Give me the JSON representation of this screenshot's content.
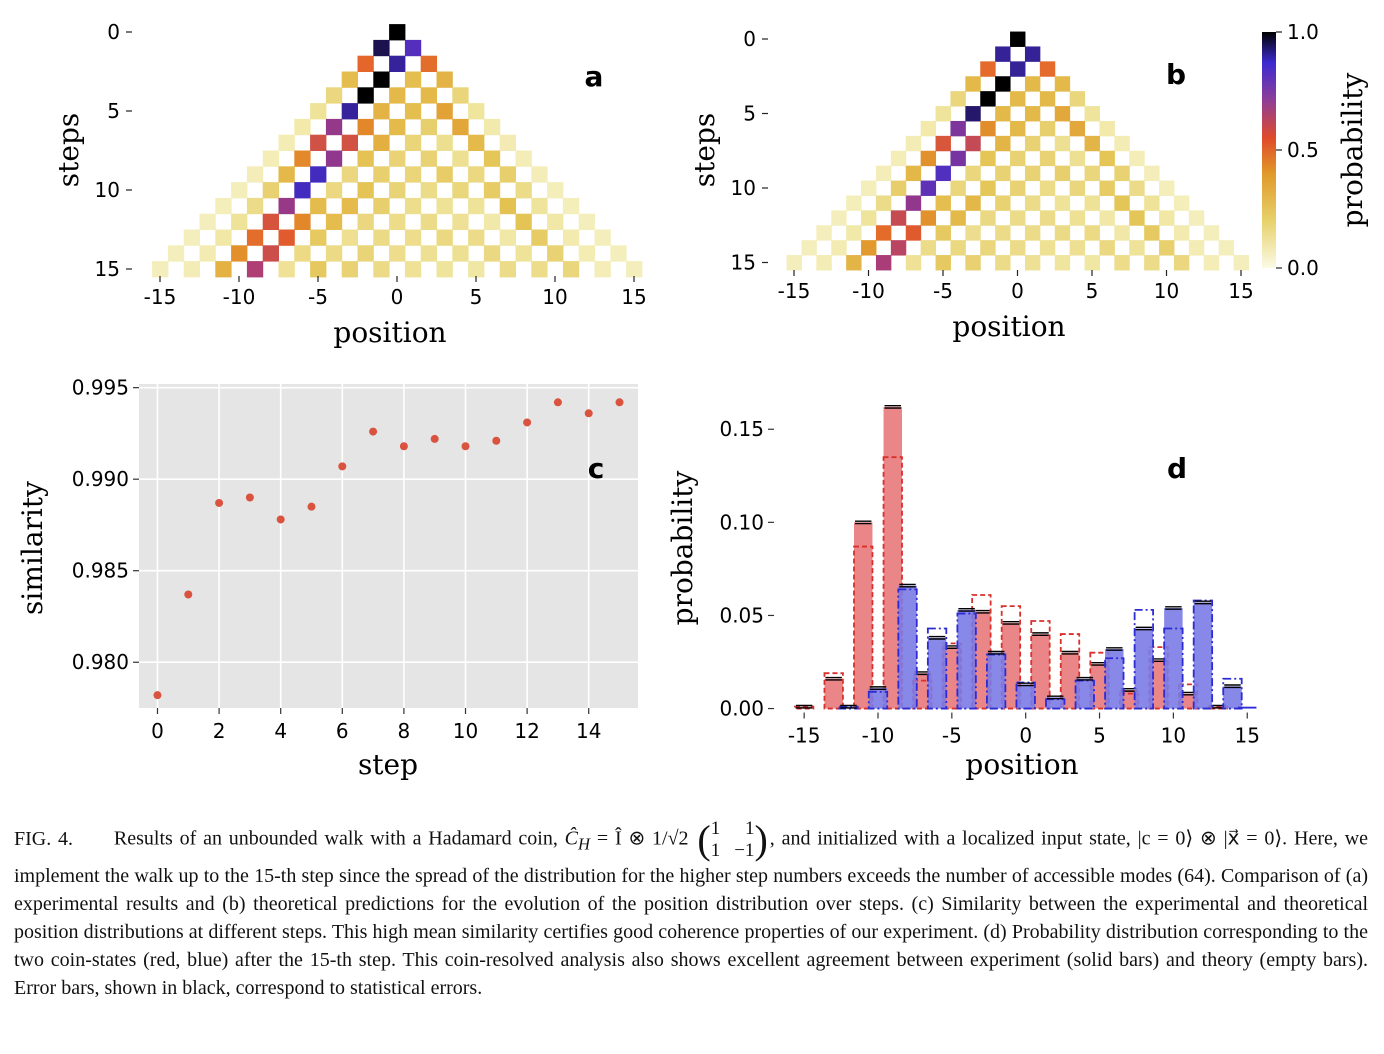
{
  "panels": {
    "a": {
      "label": "a",
      "xlabel": "position",
      "ylabel": "steps",
      "xticks": [
        "-15",
        "-10",
        "-5",
        "0",
        "5",
        "10",
        "15"
      ],
      "yticks": [
        "0",
        "5",
        "10",
        "15"
      ]
    },
    "b": {
      "label": "b",
      "xlabel": "position",
      "ylabel": "steps",
      "xticks": [
        "-15",
        "-10",
        "-5",
        "0",
        "5",
        "10",
        "15"
      ],
      "yticks": [
        "0",
        "5",
        "10",
        "15"
      ],
      "colorbar": {
        "label": "probability",
        "ticks": [
          "1.0",
          "0.5",
          "0.0"
        ]
      }
    },
    "c": {
      "label": "c",
      "xlabel": "step",
      "ylabel": "similarity",
      "xticks": [
        "0",
        "2",
        "4",
        "6",
        "8",
        "10",
        "12",
        "14"
      ],
      "yticks": [
        "0.995",
        "0.990",
        "0.985",
        "0.980"
      ]
    },
    "d": {
      "label": "d",
      "xlabel": "position",
      "ylabel": "probability",
      "xticks": [
        "-15",
        "-10",
        "-5",
        "0",
        "5",
        "10",
        "15"
      ],
      "yticks": [
        "0.15",
        "0.10",
        "0.05",
        "0.00"
      ]
    }
  },
  "chart_data": [
    {
      "type": "heatmap",
      "panel": "a",
      "note_colormap": "yellow-orange-red-purple-black (0 to 1)",
      "x_range": [
        -15,
        15
      ],
      "y_range": [
        0,
        15
      ],
      "highlighted_cells": [
        {
          "step": 0,
          "position": 0,
          "value": 1.0
        },
        {
          "step": 1,
          "position": -1,
          "value": 0.55
        },
        {
          "step": 1,
          "position": 1,
          "value": 0.45
        }
      ]
    },
    {
      "type": "heatmap",
      "panel": "b",
      "x_range": [
        -15,
        15
      ],
      "y_range": [
        0,
        15
      ],
      "highlighted_cells": [
        {
          "step": 0,
          "position": 0,
          "value": 1.0
        },
        {
          "step": 1,
          "position": -1,
          "value": 0.5
        },
        {
          "step": 1,
          "position": 1,
          "value": 0.5
        }
      ]
    },
    {
      "type": "scatter",
      "panel": "c",
      "x": [
        0,
        1,
        2,
        3,
        4,
        5,
        6,
        7,
        8,
        9,
        10,
        11,
        12,
        13,
        14,
        15
      ],
      "y": [
        0.9782,
        0.9837,
        0.9887,
        0.989,
        0.9878,
        0.9885,
        0.9907,
        0.9926,
        0.9918,
        0.9922,
        0.9918,
        0.9921,
        0.9931,
        0.9942,
        0.9936,
        0.9942
      ],
      "xlim": [
        -0.6,
        15.6
      ],
      "ylim": [
        0.9775,
        0.9952
      ],
      "grid": true,
      "color": "#d9533f",
      "background": "#e5e5e5"
    },
    {
      "type": "bar",
      "panel": "d",
      "xlim": [
        -16.5,
        16
      ],
      "ylim": [
        -0.004,
        0.17
      ],
      "series": [
        {
          "name": "red",
          "color": "#e8797a",
          "edge": "#d9302c",
          "positions": [
            -15,
            -13,
            -11,
            -9,
            -7,
            -5,
            -3,
            -1,
            1,
            3,
            5,
            7,
            9,
            11,
            13
          ],
          "experiment": [
            0.001,
            0.016,
            0.1,
            0.162,
            0.019,
            0.033,
            0.052,
            0.046,
            0.04,
            0.03,
            0.024,
            0.01,
            0.026,
            0.008,
            0.001
          ],
          "theory": [
            0.001,
            0.019,
            0.087,
            0.135,
            0.015,
            0.035,
            0.061,
            0.055,
            0.047,
            0.04,
            0.03,
            0.008,
            0.033,
            0.013,
            0.001
          ]
        },
        {
          "name": "blue",
          "color": "#7b7be6",
          "edge": "#2d2bd4",
          "positions": [
            -12,
            -10,
            -8,
            -6,
            -4,
            -2,
            0,
            2,
            4,
            6,
            8,
            10,
            12,
            14
          ],
          "experiment": [
            0.001,
            0.011,
            0.066,
            0.038,
            0.053,
            0.03,
            0.013,
            0.006,
            0.016,
            0.032,
            0.043,
            0.054,
            0.057,
            0.012
          ],
          "theory": [
            0.001,
            0.009,
            0.064,
            0.043,
            0.051,
            0.029,
            0.014,
            0.005,
            0.015,
            0.027,
            0.053,
            0.043,
            0.058,
            0.016
          ]
        }
      ],
      "special": {
        "position": 15,
        "blue_experiment": 0.001
      }
    }
  ],
  "caption": {
    "label": "FIG. 4.",
    "intro": "Results of an unbounded walk with a Hadamard coin,",
    "coin_symbol": "Ĉ",
    "coin_subscript": "H",
    "coin_definition": "= Î ⊗ 1/√2",
    "matrix": [
      "1",
      "1",
      "1",
      "−1"
    ],
    "after_matrix": ", and initialized with a localized input state,",
    "state": "|c = 0⟩ ⊗ |x⃗ = 0⟩.",
    "body": "Here, we implement the walk up to the 15-th step since the spread of the distribution for the higher step numbers exceeds the number of accessible modes (64). Comparison of (a) experimental results and (b) theoretical predictions for the evolution of the position distribution over steps. (c) Similarity between the experimental and theoretical position distributions at different steps. This high mean similarity certifies good coherence properties of our experiment. (d) Probability distribution corresponding to the two coin-states (red, blue) after the 15-th step. This coin-resolved analysis also shows excellent agreement between experiment (solid bars) and theory (empty bars). Error bars, shown in black, correspond to statistical errors."
  }
}
